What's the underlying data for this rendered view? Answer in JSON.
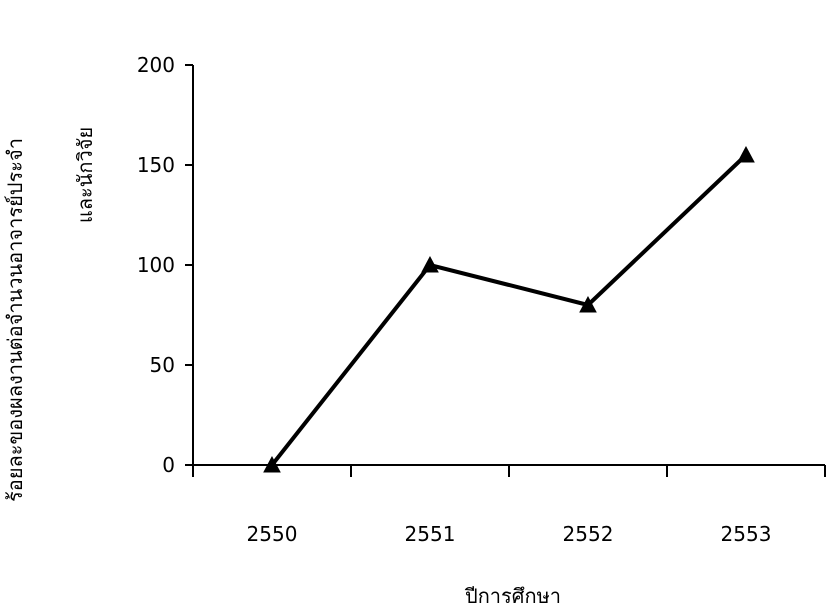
{
  "chart_data": {
    "type": "line",
    "categories": [
      "2550",
      "2551",
      "2552",
      "2553"
    ],
    "series": [
      {
        "values": [
          0,
          100,
          80,
          155
        ]
      }
    ],
    "xlabel": "ปีการศึกษา",
    "ylabel": [
      "ร้อยละของผลงานต่อจำนวนอาจารย์ประจำ",
      "และนักวิจัย"
    ],
    "ylim": [
      0,
      200
    ],
    "yticks": [
      0,
      50,
      100,
      150,
      200
    ],
    "grid": false,
    "legend": "none",
    "marker": "triangle",
    "line_color": "#000000"
  }
}
